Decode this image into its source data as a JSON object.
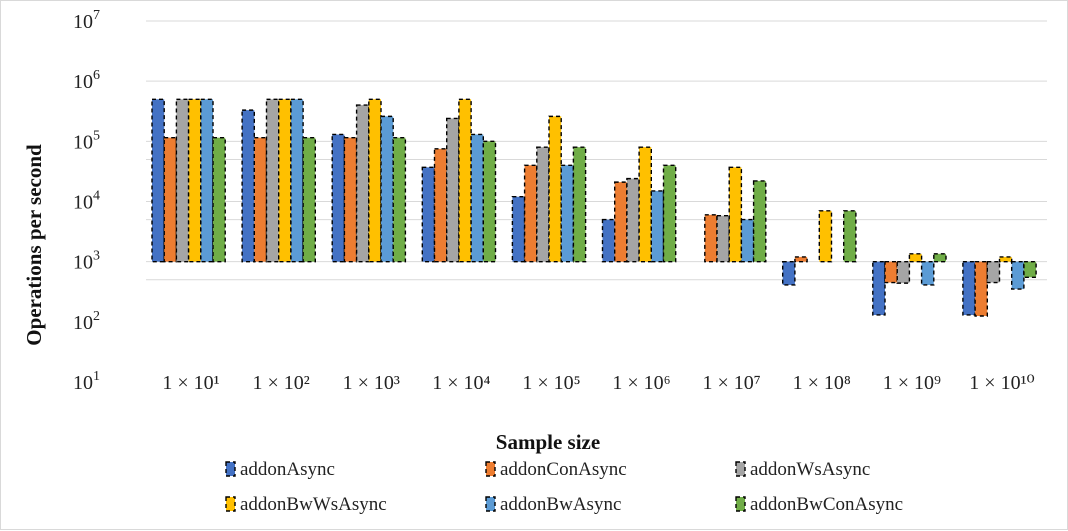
{
  "chart_data": {
    "type": "bar",
    "title": "",
    "xlabel": "Sample size",
    "ylabel": "Operations per second",
    "y_scale": "log",
    "ylim": [
      10,
      10000000
    ],
    "baseline": 1000,
    "y_ticks": [
      {
        "value": 10,
        "base": "10",
        "exp": "1"
      },
      {
        "value": 100,
        "base": "10",
        "exp": "2"
      },
      {
        "value": 1000,
        "base": "10",
        "exp": "3"
      },
      {
        "value": 10000,
        "base": "10",
        "exp": "4"
      },
      {
        "value": 100000,
        "base": "10",
        "exp": "5"
      },
      {
        "value": 1000000,
        "base": "10",
        "exp": "6"
      },
      {
        "value": 10000000,
        "base": "10",
        "exp": "7"
      }
    ],
    "categories": [
      "1 × 10¹",
      "1 × 10²",
      "1 × 10³",
      "1 × 10⁴",
      "1 × 10⁵",
      "1 × 10⁶",
      "1 × 10⁷",
      "1 × 10⁸",
      "1 × 10⁹",
      "1 × 10¹⁰"
    ],
    "legend_position": "bottom",
    "grid": true,
    "series": [
      {
        "name": "addonAsync",
        "color": "#4472c4",
        "values": [
          500000,
          330000,
          130000,
          37000,
          12000,
          5000,
          null,
          410,
          130,
          130
        ]
      },
      {
        "name": "addonConAsync",
        "color": "#ed7d31",
        "values": [
          115000,
          115000,
          115000,
          75000,
          40000,
          21000,
          6000,
          1200,
          450,
          125
        ]
      },
      {
        "name": "addonWsAsync",
        "color": "#a5a5a5",
        "values": [
          500000,
          500000,
          400000,
          240000,
          80000,
          24000,
          5800,
          null,
          440,
          450
        ]
      },
      {
        "name": "addonBwWsAsync",
        "color": "#ffc000",
        "values": [
          500000,
          500000,
          500000,
          500000,
          260000,
          80000,
          37000,
          7000,
          1350,
          1200
        ]
      },
      {
        "name": "addonBwAsync",
        "color": "#5b9bd5",
        "values": [
          500000,
          500000,
          260000,
          130000,
          40000,
          15000,
          5000,
          null,
          410,
          350
        ]
      },
      {
        "name": "addonBwConAsync",
        "color": "#70ad47",
        "values": [
          115000,
          115000,
          115000,
          100000,
          80000,
          40000,
          22000,
          7000,
          1350,
          550
        ]
      }
    ]
  }
}
